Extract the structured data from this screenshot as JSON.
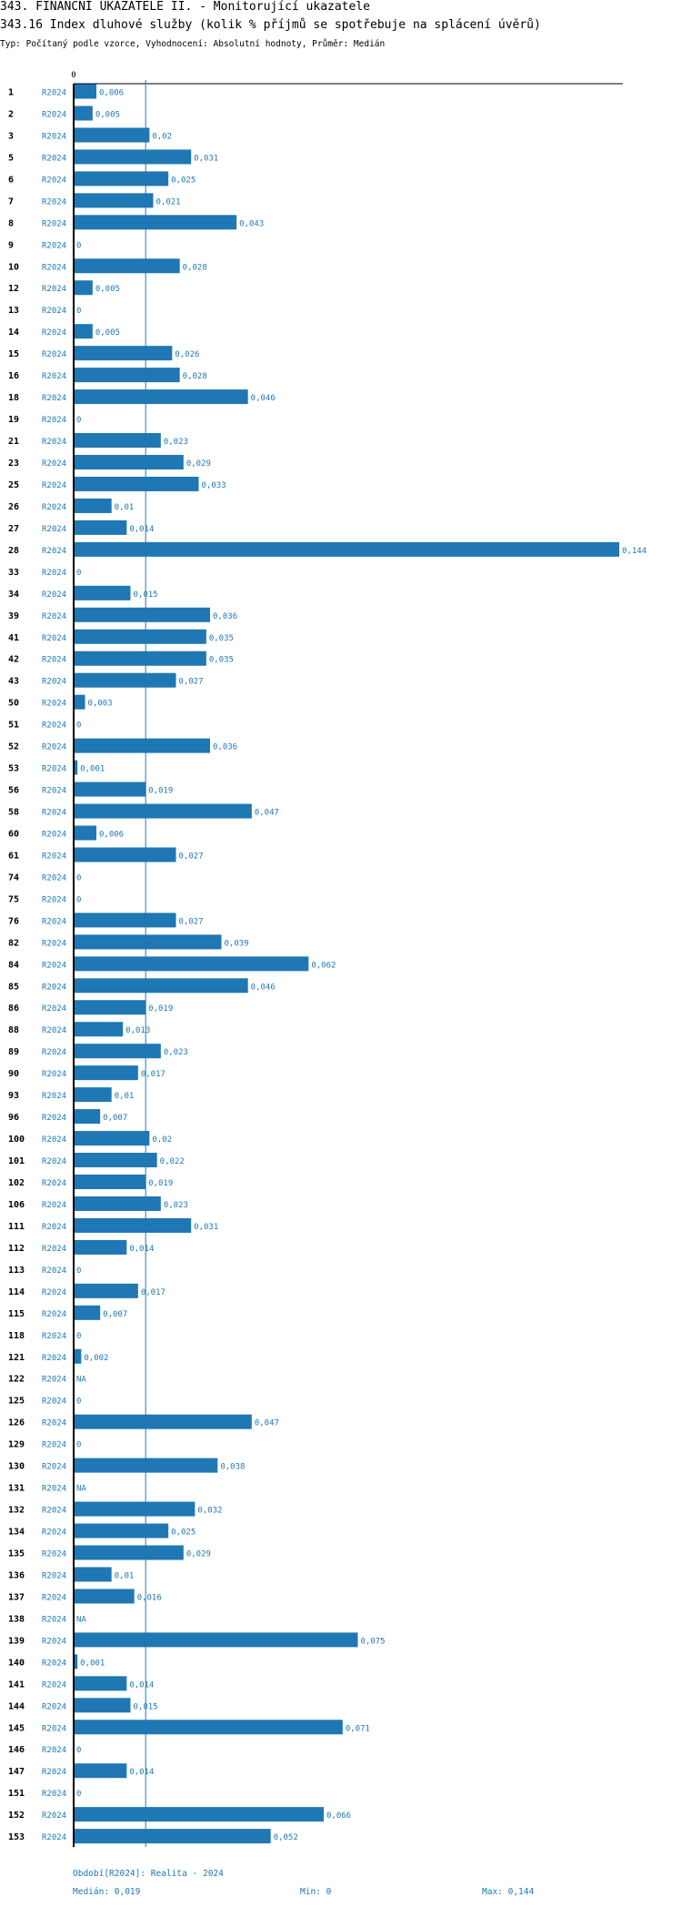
{
  "header": {
    "title": "343. FINANČNÍ UKAZATELE II. - Monitorující ukazatele",
    "indicator": "343.16 Index dluhové služby (kolik % příjmů se spotřebuje na splácení úvěrů)",
    "subtitle": "Typ: Počítaný podle vzorce, Vyhodnocení: Absolutní hodnoty, Průměr: Medián"
  },
  "colors": {
    "bar": "#1f77b4",
    "label": "#1f77b4",
    "axis": "#000000"
  },
  "chart_data": {
    "type": "bar",
    "orientation": "horizontal",
    "period_label": "R2024",
    "xlim": [
      0,
      0.144
    ],
    "x_tick_labels": [
      "0"
    ],
    "reference_line": {
      "name": "Medián",
      "value": 0.019
    },
    "categories": [
      "1",
      "2",
      "3",
      "5",
      "6",
      "7",
      "8",
      "9",
      "10",
      "12",
      "13",
      "14",
      "15",
      "16",
      "18",
      "19",
      "21",
      "23",
      "25",
      "26",
      "27",
      "28",
      "33",
      "34",
      "39",
      "41",
      "42",
      "43",
      "50",
      "51",
      "52",
      "53",
      "56",
      "58",
      "60",
      "61",
      "74",
      "75",
      "76",
      "82",
      "84",
      "85",
      "86",
      "88",
      "89",
      "90",
      "93",
      "96",
      "100",
      "101",
      "102",
      "106",
      "111",
      "112",
      "113",
      "114",
      "115",
      "118",
      "121",
      "122",
      "125",
      "126",
      "129",
      "130",
      "131",
      "132",
      "134",
      "135",
      "136",
      "137",
      "138",
      "139",
      "140",
      "141",
      "144",
      "145",
      "146",
      "147",
      "151",
      "152",
      "153"
    ],
    "values": [
      0.006,
      0.005,
      0.02,
      0.031,
      0.025,
      0.021,
      0.043,
      0,
      0.028,
      0.005,
      0,
      0.005,
      0.026,
      0.028,
      0.046,
      0,
      0.023,
      0.029,
      0.033,
      0.01,
      0.014,
      0.144,
      0,
      0.015,
      0.036,
      0.035,
      0.035,
      0.027,
      0.003,
      0,
      0.036,
      0.001,
      0.019,
      0.047,
      0.006,
      0.027,
      0,
      0,
      0.027,
      0.039,
      0.062,
      0.046,
      0.019,
      0.013,
      0.023,
      0.017,
      0.01,
      0.007,
      0.02,
      0.022,
      0.019,
      0.023,
      0.031,
      0.014,
      0,
      0.017,
      0.007,
      0,
      0.002,
      null,
      0,
      0.047,
      0,
      0.038,
      null,
      0.032,
      0.025,
      0.029,
      0.01,
      0.016,
      null,
      0.075,
      0.001,
      0.014,
      0.015,
      0.071,
      0,
      0.014,
      0,
      0.066,
      0.052
    ],
    "value_labels": [
      "0,006",
      "0,005",
      "0,02",
      "0,031",
      "0,025",
      "0,021",
      "0,043",
      "0",
      "0,028",
      "0,005",
      "0",
      "0,005",
      "0,026",
      "0,028",
      "0,046",
      "0",
      "0,023",
      "0,029",
      "0,033",
      "0,01",
      "0,014",
      "0,144",
      "0",
      "0,015",
      "0,036",
      "0,035",
      "0,035",
      "0,027",
      "0,003",
      "0",
      "0,036",
      "0,001",
      "0,019",
      "0,047",
      "0,006",
      "0,027",
      "0",
      "0",
      "0,027",
      "0,039",
      "0,062",
      "0,046",
      "0,019",
      "0,013",
      "0,023",
      "0,017",
      "0,01",
      "0,007",
      "0,02",
      "0,022",
      "0,019",
      "0,023",
      "0,031",
      "0,014",
      "0",
      "0,017",
      "0,007",
      "0",
      "0,002",
      "NA",
      "0",
      "0,047",
      "0",
      "0,038",
      "NA",
      "0,032",
      "0,025",
      "0,029",
      "0,01",
      "0,016",
      "NA",
      "0,075",
      "0,001",
      "0,014",
      "0,015",
      "0,071",
      "0",
      "0,014",
      "0",
      "0,066",
      "0,052"
    ]
  },
  "footer": {
    "period": "Období[R2024]: Realita - 2024",
    "median": "Medián: 0,019",
    "min": "Min: 0",
    "max": "Max: 0,144"
  }
}
